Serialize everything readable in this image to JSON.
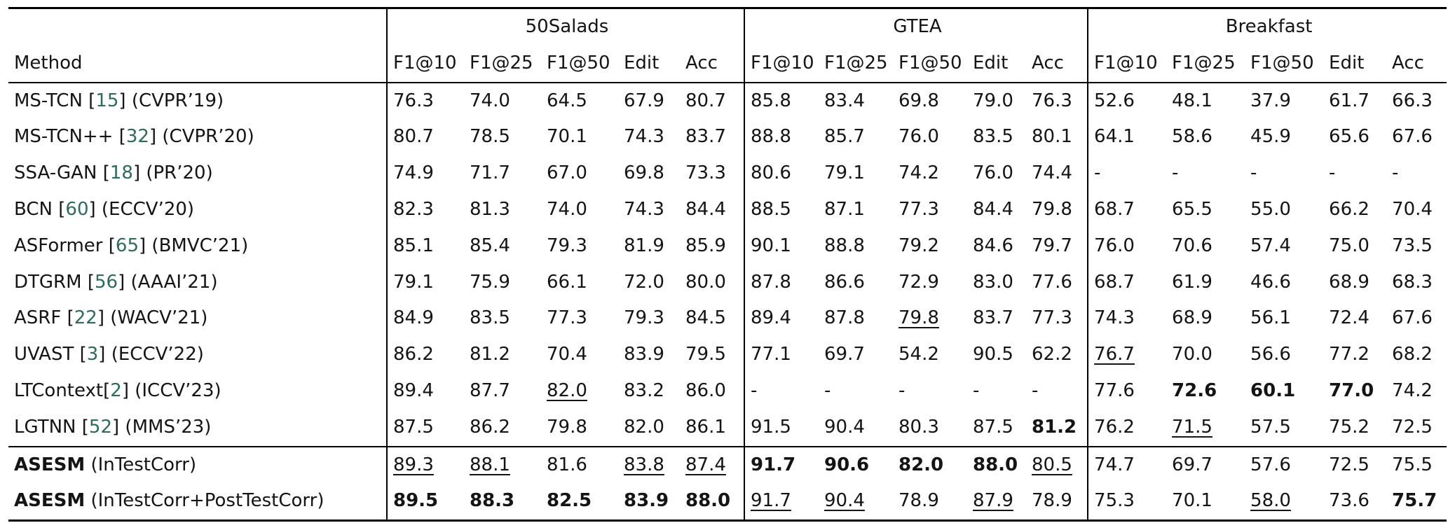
{
  "page": {
    "background": "#ffffff",
    "text_color": "#141414",
    "rule_color": "#000000",
    "cite_color": "#2d6d57"
  },
  "table": {
    "method_header": "Method",
    "groups": [
      {
        "label": "50Salads"
      },
      {
        "label": "GTEA"
      },
      {
        "label": "Breakfast"
      }
    ],
    "metric_headers": [
      "F1@10",
      "F1@25",
      "F1@50",
      "Edit",
      "Acc"
    ],
    "rows": [
      {
        "method": [
          {
            "t": "MS-TCN ",
            "style": "plain"
          },
          {
            "t": "[",
            "style": "plain"
          },
          {
            "t": "15",
            "style": "cite"
          },
          {
            "t": "]",
            "style": "plain"
          },
          {
            "t": " (CVPR’19)",
            "style": "plain"
          }
        ],
        "cells": [
          "76.3",
          "74.0",
          "64.5",
          "67.9",
          "80.7",
          "85.8",
          "83.4",
          "69.8",
          "79.0",
          "76.3",
          "52.6",
          "48.1",
          "37.9",
          "61.7",
          "66.3"
        ]
      },
      {
        "method": [
          {
            "t": "MS-TCN++ ",
            "style": "plain"
          },
          {
            "t": "[",
            "style": "plain"
          },
          {
            "t": "32",
            "style": "cite"
          },
          {
            "t": "]",
            "style": "plain"
          },
          {
            "t": " (CVPR’20)",
            "style": "plain"
          }
        ],
        "cells": [
          "80.7",
          "78.5",
          "70.1",
          "74.3",
          "83.7",
          "88.8",
          "85.7",
          "76.0",
          "83.5",
          "80.1",
          "64.1",
          "58.6",
          "45.9",
          "65.6",
          "67.6"
        ]
      },
      {
        "method": [
          {
            "t": "SSA-GAN ",
            "style": "plain"
          },
          {
            "t": "[",
            "style": "plain"
          },
          {
            "t": "18",
            "style": "cite"
          },
          {
            "t": "]",
            "style": "plain"
          },
          {
            "t": " (PR’20)",
            "style": "plain"
          }
        ],
        "cells": [
          "74.9",
          "71.7",
          "67.0",
          "69.8",
          "73.3",
          "80.6",
          "79.1",
          "74.2",
          "76.0",
          "74.4",
          "-",
          "-",
          "-",
          "-",
          "-"
        ]
      },
      {
        "method": [
          {
            "t": "BCN ",
            "style": "plain"
          },
          {
            "t": "[",
            "style": "plain"
          },
          {
            "t": "60",
            "style": "cite"
          },
          {
            "t": "]",
            "style": "plain"
          },
          {
            "t": " (ECCV’20)",
            "style": "plain"
          }
        ],
        "cells": [
          "82.3",
          "81.3",
          "74.0",
          "74.3",
          "84.4",
          "88.5",
          "87.1",
          "77.3",
          "84.4",
          "79.8",
          "68.7",
          "65.5",
          "55.0",
          "66.2",
          "70.4"
        ]
      },
      {
        "method": [
          {
            "t": "ASFormer ",
            "style": "plain"
          },
          {
            "t": "[",
            "style": "plain"
          },
          {
            "t": "65",
            "style": "cite"
          },
          {
            "t": "]",
            "style": "plain"
          },
          {
            "t": " (BMVC’21)",
            "style": "plain"
          }
        ],
        "cells": [
          "85.1",
          "85.4",
          "79.3",
          "81.9",
          "85.9",
          "90.1",
          "88.8",
          "79.2",
          "84.6",
          "79.7",
          "76.0",
          "70.6",
          "57.4",
          "75.0",
          "73.5"
        ]
      },
      {
        "method": [
          {
            "t": "DTGRM ",
            "style": "plain"
          },
          {
            "t": "[",
            "style": "plain"
          },
          {
            "t": "56",
            "style": "cite"
          },
          {
            "t": "]",
            "style": "plain"
          },
          {
            "t": " (AAAI’21)",
            "style": "plain"
          }
        ],
        "cells": [
          "79.1",
          "75.9",
          "66.1",
          "72.0",
          "80.0",
          "87.8",
          "86.6",
          "72.9",
          "83.0",
          "77.6",
          "68.7",
          "61.9",
          "46.6",
          "68.9",
          "68.3"
        ]
      },
      {
        "method": [
          {
            "t": "ASRF ",
            "style": "plain"
          },
          {
            "t": "[",
            "style": "plain"
          },
          {
            "t": "22",
            "style": "cite"
          },
          {
            "t": "]",
            "style": "plain"
          },
          {
            "t": " (WACV’21)",
            "style": "plain"
          }
        ],
        "cells": [
          "84.9",
          "83.5",
          "77.3",
          "79.3",
          "84.5",
          "89.4",
          "87.8",
          {
            "v": "79.8",
            "s": "u"
          },
          "83.7",
          "77.3",
          "74.3",
          "68.9",
          "56.1",
          "72.4",
          "67.6"
        ]
      },
      {
        "method": [
          {
            "t": "UVAST ",
            "style": "plain"
          },
          {
            "t": "[",
            "style": "plain"
          },
          {
            "t": "3",
            "style": "cite"
          },
          {
            "t": "]",
            "style": "plain"
          },
          {
            "t": " (ECCV’22)",
            "style": "plain"
          }
        ],
        "cells": [
          "86.2",
          "81.2",
          "70.4",
          "83.9",
          "79.5",
          "77.1",
          "69.7",
          "54.2",
          "90.5",
          "62.2",
          {
            "v": "76.7",
            "s": "u"
          },
          "70.0",
          "56.6",
          "77.2",
          "68.2"
        ]
      },
      {
        "method": [
          {
            "t": "LTContext",
            "style": "plain"
          },
          {
            "t": "[",
            "style": "plain"
          },
          {
            "t": "2",
            "style": "cite"
          },
          {
            "t": "]",
            "style": "plain"
          },
          {
            "t": " (ICCV’23)",
            "style": "plain"
          }
        ],
        "cells": [
          "89.4",
          "87.7",
          {
            "v": "82.0",
            "s": "u"
          },
          "83.2",
          "86.0",
          "-",
          "-",
          "-",
          "-",
          "-",
          "77.6",
          {
            "v": "72.6",
            "s": "b"
          },
          {
            "v": "60.1",
            "s": "b"
          },
          {
            "v": "77.0",
            "s": "b"
          },
          "74.2"
        ]
      },
      {
        "method": [
          {
            "t": "LGTNN ",
            "style": "plain"
          },
          {
            "t": "[",
            "style": "plain"
          },
          {
            "t": "52",
            "style": "cite"
          },
          {
            "t": "]",
            "style": "plain"
          },
          {
            "t": " (MMS’23)",
            "style": "plain"
          }
        ],
        "cells": [
          "87.5",
          "86.2",
          "79.8",
          "82.0",
          "86.1",
          "91.5",
          "90.4",
          "80.3",
          "87.5",
          {
            "v": "81.2",
            "s": "b"
          },
          "76.2",
          {
            "v": "71.5",
            "s": "u"
          },
          "57.5",
          "75.2",
          "72.5"
        ]
      },
      {
        "section": true,
        "method": [
          {
            "t": "ASESM",
            "style": "bold"
          },
          {
            "t": " (InTestCorr)",
            "style": "plain"
          }
        ],
        "cells": [
          {
            "v": "89.3",
            "s": "u"
          },
          {
            "v": "88.1",
            "s": "u"
          },
          "81.6",
          {
            "v": "83.8",
            "s": "u"
          },
          {
            "v": "87.4",
            "s": "u"
          },
          {
            "v": "91.7",
            "s": "b"
          },
          {
            "v": "90.6",
            "s": "b"
          },
          {
            "v": "82.0",
            "s": "b"
          },
          {
            "v": "88.0",
            "s": "b"
          },
          {
            "v": "80.5",
            "s": "u"
          },
          "74.7",
          "69.7",
          "57.6",
          "72.5",
          "75.5"
        ]
      },
      {
        "method": [
          {
            "t": "ASESM",
            "style": "bold"
          },
          {
            "t": " (InTestCorr+PostTestCorr)",
            "style": "plain"
          }
        ],
        "cells": [
          {
            "v": "89.5",
            "s": "b"
          },
          {
            "v": "88.3",
            "s": "b"
          },
          {
            "v": "82.5",
            "s": "b"
          },
          {
            "v": "83.9",
            "s": "b"
          },
          {
            "v": "88.0",
            "s": "b"
          },
          {
            "v": "91.7",
            "s": "u"
          },
          {
            "v": "90.4",
            "s": "u"
          },
          "78.9",
          {
            "v": "87.9",
            "s": "u"
          },
          "78.9",
          "75.3",
          "70.1",
          {
            "v": "58.0",
            "s": "u"
          },
          "73.6",
          {
            "v": "75.7",
            "s": "b"
          }
        ]
      }
    ]
  }
}
